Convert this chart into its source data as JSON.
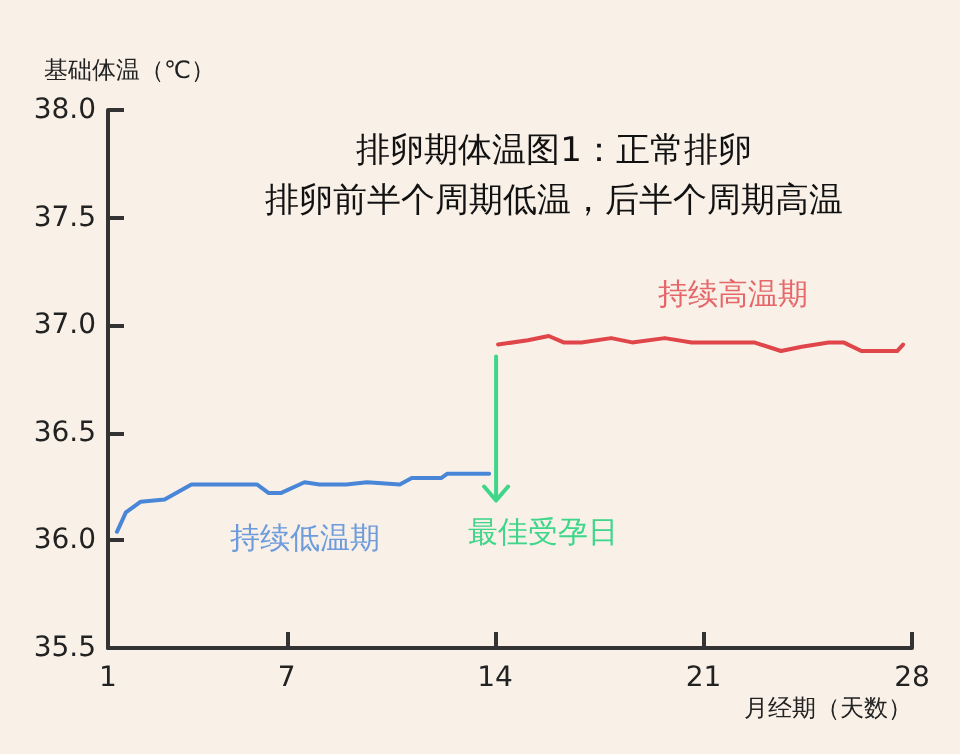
{
  "chart_data": {
    "type": "line",
    "title": "排卵期体温图1：正常排卵",
    "subtitle": "排卵前半个周期低温，后半个周期高温",
    "xlabel": "月经期（天数）",
    "ylabel": "基础体温（℃）",
    "series": [
      {
        "name": "持续低温期",
        "color": "#4a86d8",
        "x": [
          1.3,
          1.6,
          2.1,
          2.9,
          3.8,
          6.0,
          6.4,
          6.8,
          7.6,
          8.1,
          9.0,
          9.7,
          10.8,
          11.2,
          12.2,
          12.4,
          13.8
        ],
        "values": [
          36.04,
          36.13,
          36.18,
          36.19,
          36.26,
          36.26,
          36.22,
          36.22,
          36.27,
          36.26,
          36.26,
          36.27,
          36.26,
          36.29,
          36.29,
          36.31,
          36.31
        ]
      },
      {
        "name": "持续高温期",
        "color": "#e0454a",
        "x": [
          14.1,
          15.1,
          15.8,
          16.3,
          16.9,
          17.9,
          18.6,
          19.7,
          20.6,
          22.0,
          22.7,
          23.6,
          24.3,
          25.2,
          25.7,
          26.3,
          27.5,
          27.7
        ],
        "values": [
          36.91,
          36.93,
          36.95,
          36.92,
          36.92,
          36.94,
          36.92,
          36.94,
          36.92,
          36.92,
          36.92,
          36.88,
          36.9,
          36.92,
          36.92,
          36.88,
          36.88,
          36.91
        ]
      }
    ],
    "annotations": [
      "最佳受孕日"
    ],
    "xlim": [
      1,
      28
    ],
    "xticks": [
      1,
      7,
      14,
      21,
      28
    ],
    "ylim": [
      35.5,
      38
    ],
    "yticks": [
      35.5,
      {
        "value": 36,
        "label": "36.0"
      },
      36.5,
      {
        "value": 37,
        "label": "37.0"
      },
      37.5,
      {
        "value": 38,
        "label": "38.0"
      }
    ],
    "grid": false,
    "legend": false,
    "marker": "none",
    "line_style": "solid"
  }
}
